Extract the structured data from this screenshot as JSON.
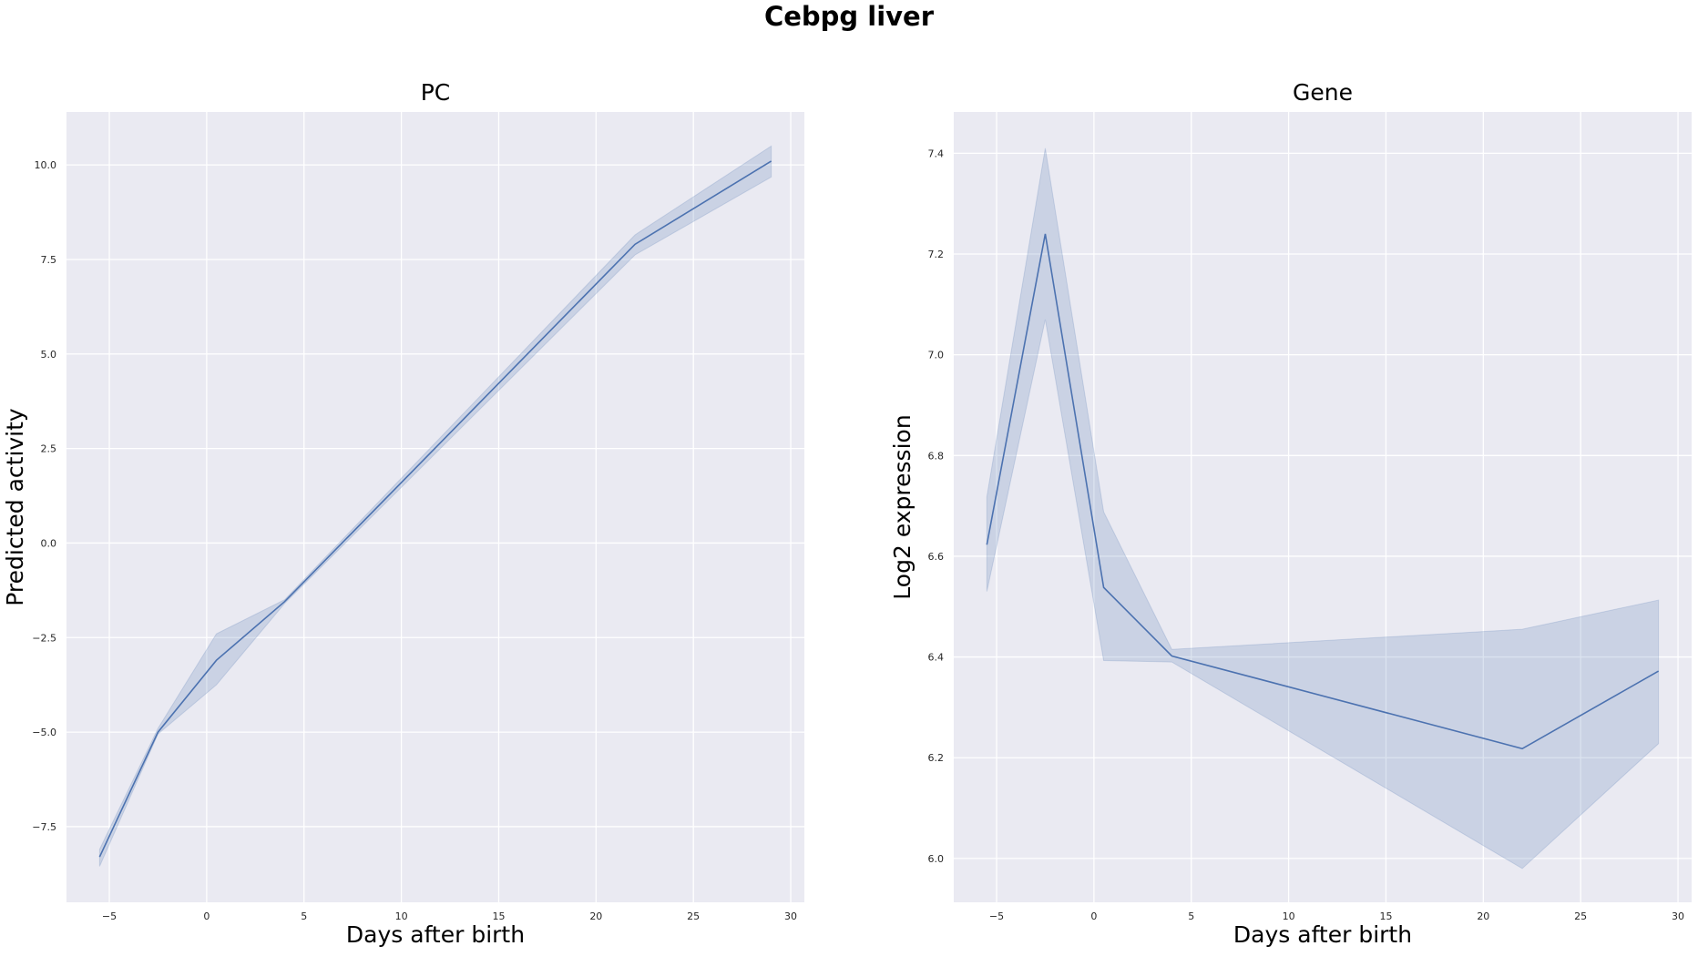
{
  "figure": {
    "suptitle": "Cebpg liver"
  },
  "colors": {
    "axes_bg": "#eaeaf2",
    "grid": "#ffffff",
    "line": "#4c72b0",
    "band": "#4c72b0"
  },
  "chart_data": [
    {
      "type": "line",
      "title": "PC",
      "xlabel": "Days after birth",
      "ylabel": "Predicted activity",
      "xlim": [
        -7.2,
        30.7
      ],
      "ylim": [
        -9.5,
        11.4
      ],
      "xticks": [
        -5,
        0,
        5,
        10,
        15,
        20,
        25,
        30
      ],
      "xtick_labels": [
        "−5",
        "0",
        "5",
        "10",
        "15",
        "20",
        "25",
        "30"
      ],
      "yticks": [
        -7.5,
        -5.0,
        -2.5,
        0.0,
        2.5,
        5.0,
        7.5,
        10.0
      ],
      "ytick_labels": [
        "−7.5",
        "−5.0",
        "−2.5",
        "0.0",
        "2.5",
        "5.0",
        "7.5",
        "10.0"
      ],
      "grid": true,
      "series": [
        {
          "x": [
            -5.5,
            -2.5,
            0.5,
            4,
            22,
            29
          ],
          "y": [
            -8.3,
            -5.0,
            -3.1,
            -1.55,
            7.9,
            10.1
          ],
          "ci_low": [
            -8.55,
            -5.05,
            -3.75,
            -1.6,
            7.62,
            9.68
          ],
          "ci_high": [
            -8.1,
            -4.9,
            -2.4,
            -1.5,
            8.15,
            10.5
          ]
        }
      ]
    },
    {
      "type": "line",
      "title": "Gene",
      "xlabel": "Days after birth",
      "ylabel": "Log2 expression",
      "xlim": [
        -7.2,
        30.7
      ],
      "ylim": [
        5.913,
        7.482
      ],
      "xticks": [
        -5,
        0,
        5,
        10,
        15,
        20,
        25,
        30
      ],
      "xtick_labels": [
        "−5",
        "0",
        "5",
        "10",
        "15",
        "20",
        "25",
        "30"
      ],
      "yticks": [
        6.0,
        6.2,
        6.4,
        6.6,
        6.8,
        7.0,
        7.2,
        7.4
      ],
      "ytick_labels": [
        "6.0",
        "6.2",
        "6.4",
        "6.6",
        "6.8",
        "7.0",
        "7.2",
        "7.4"
      ],
      "grid": true,
      "series": [
        {
          "x": [
            -5.5,
            -2.5,
            0.5,
            4,
            22,
            29
          ],
          "y": [
            6.623,
            7.24,
            6.538,
            6.402,
            6.218,
            6.372
          ],
          "ci_low": [
            6.53,
            7.07,
            6.393,
            6.39,
            5.98,
            6.228
          ],
          "ci_high": [
            6.718,
            7.41,
            6.688,
            6.415,
            6.455,
            6.513
          ]
        }
      ]
    }
  ]
}
